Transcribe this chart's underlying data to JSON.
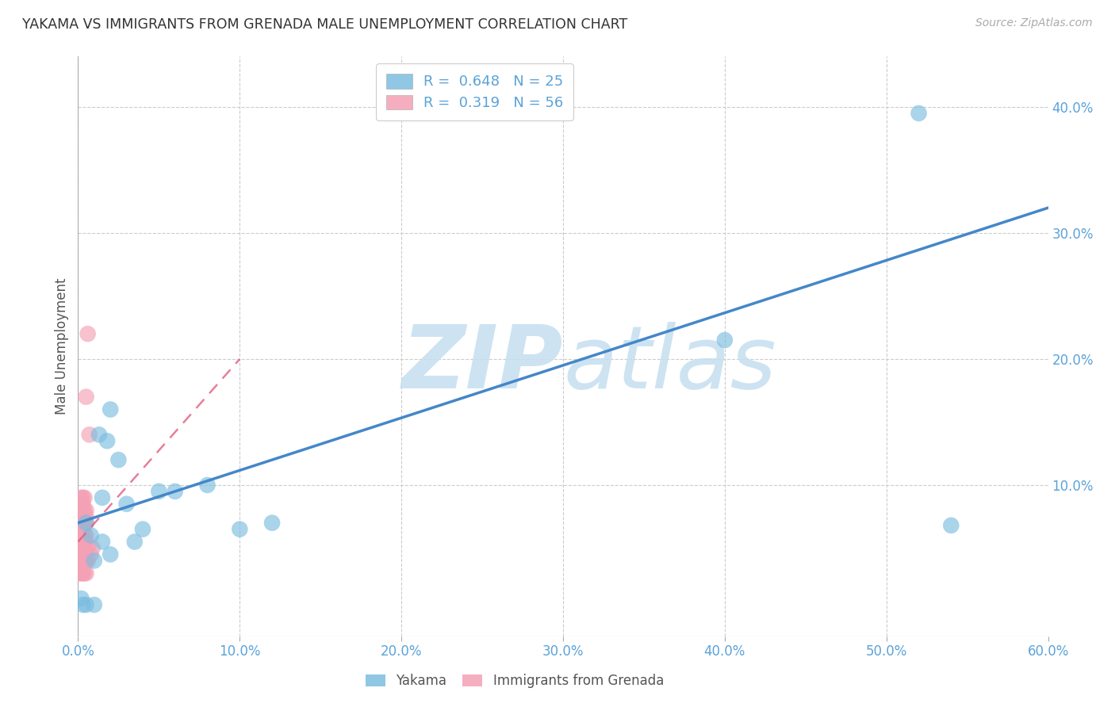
{
  "title": "YAKAMA VS IMMIGRANTS FROM GRENADA MALE UNEMPLOYMENT CORRELATION CHART",
  "source": "Source: ZipAtlas.com",
  "ylabel": "Male Unemployment",
  "watermark": "ZIPatlas",
  "xlim": [
    0.0,
    0.6
  ],
  "ylim": [
    -0.02,
    0.44
  ],
  "xticks": [
    0.0,
    0.1,
    0.2,
    0.3,
    0.4,
    0.5,
    0.6
  ],
  "yticks": [
    0.1,
    0.2,
    0.3,
    0.4
  ],
  "ytick_labels": [
    "10.0%",
    "20.0%",
    "30.0%",
    "40.0%"
  ],
  "xtick_labels": [
    "0.0%",
    "10.0%",
    "20.0%",
    "30.0%",
    "40.0%",
    "50.0%",
    "60.0%"
  ],
  "legend_blue_r": "0.648",
  "legend_blue_n": "25",
  "legend_pink_r": "0.319",
  "legend_pink_n": "56",
  "legend_blue_label": "Yakama",
  "legend_pink_label": "Immigrants from Grenada",
  "blue_color": "#7bbde0",
  "pink_color": "#f4a0b5",
  "blue_line_color": "#4487c8",
  "pink_line_color": "#e06080",
  "grid_color": "#cccccc",
  "watermark_color": "#c5dff0",
  "blue_scatter_x": [
    0.002,
    0.003,
    0.005,
    0.005,
    0.008,
    0.01,
    0.01,
    0.013,
    0.015,
    0.015,
    0.018,
    0.02,
    0.02,
    0.025,
    0.03,
    0.035,
    0.04,
    0.05,
    0.06,
    0.08,
    0.1,
    0.12,
    0.4,
    0.52,
    0.54
  ],
  "blue_scatter_y": [
    0.01,
    0.005,
    0.07,
    0.005,
    0.06,
    0.005,
    0.04,
    0.14,
    0.09,
    0.055,
    0.135,
    0.045,
    0.16,
    0.12,
    0.085,
    0.055,
    0.065,
    0.095,
    0.095,
    0.1,
    0.065,
    0.07,
    0.215,
    0.395,
    0.068
  ],
  "pink_scatter_x": [
    0.001,
    0.001,
    0.001,
    0.001,
    0.001,
    0.001,
    0.001,
    0.001,
    0.001,
    0.002,
    0.002,
    0.002,
    0.002,
    0.002,
    0.002,
    0.002,
    0.002,
    0.002,
    0.002,
    0.002,
    0.003,
    0.003,
    0.003,
    0.003,
    0.003,
    0.003,
    0.003,
    0.003,
    0.003,
    0.003,
    0.003,
    0.003,
    0.003,
    0.004,
    0.004,
    0.004,
    0.004,
    0.004,
    0.004,
    0.004,
    0.004,
    0.005,
    0.005,
    0.005,
    0.005,
    0.005,
    0.005,
    0.005,
    0.005,
    0.005,
    0.006,
    0.006,
    0.006,
    0.007,
    0.008,
    0.009
  ],
  "pink_scatter_y": [
    0.03,
    0.04,
    0.04,
    0.05,
    0.05,
    0.06,
    0.06,
    0.07,
    0.08,
    0.03,
    0.04,
    0.04,
    0.05,
    0.05,
    0.06,
    0.06,
    0.07,
    0.07,
    0.08,
    0.09,
    0.03,
    0.04,
    0.04,
    0.05,
    0.05,
    0.055,
    0.06,
    0.065,
    0.07,
    0.075,
    0.08,
    0.085,
    0.09,
    0.03,
    0.04,
    0.05,
    0.06,
    0.07,
    0.075,
    0.08,
    0.09,
    0.03,
    0.04,
    0.05,
    0.055,
    0.06,
    0.07,
    0.075,
    0.08,
    0.17,
    0.04,
    0.05,
    0.22,
    0.14,
    0.045,
    0.05
  ],
  "blue_trendline_x": [
    0.0,
    0.6
  ],
  "blue_trendline_y": [
    0.07,
    0.32
  ],
  "pink_trendline_x": [
    0.0,
    0.1
  ],
  "pink_trendline_y": [
    0.055,
    0.2
  ]
}
